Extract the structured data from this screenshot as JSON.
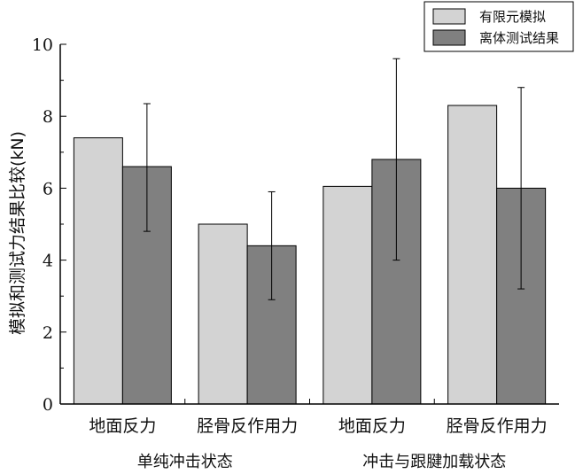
{
  "chart_data": {
    "type": "bar",
    "ylabel": "模拟和测试力结果比较(kN)",
    "ylim": [
      0,
      10
    ],
    "yticks": [
      "0",
      "2",
      "4",
      "6",
      "8",
      "10"
    ],
    "categories": [
      "地面反力",
      "胫骨反作用力",
      "地面反力",
      "胫骨反作用力"
    ],
    "groups": [
      {
        "label": "单纯冲击状态"
      },
      {
        "label": "冲击与跟腱加载状态"
      }
    ],
    "series": [
      {
        "name": "有限元模拟",
        "color": "#d3d3d3",
        "values": [
          7.4,
          5.0,
          6.05,
          8.3
        ]
      },
      {
        "name": "离体测试结果",
        "color": "#808080",
        "values": [
          6.6,
          4.4,
          6.8,
          6.0
        ],
        "error_low": [
          4.8,
          2.9,
          4.0,
          3.2
        ],
        "error_high": [
          8.35,
          5.9,
          9.6,
          8.8
        ]
      }
    ],
    "legend_position": "top-right",
    "grid": false
  }
}
